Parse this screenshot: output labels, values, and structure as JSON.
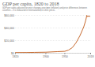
{
  "chart_data": {
    "type": "line",
    "title": "GDP per capita, 1820 to 2018",
    "subtitle": "GDP per capita adjusted for price changes over time (inflation) and price differences between countries – it is measured in international-$ in 2011 prices.",
    "x": [
      1820,
      1850,
      1870,
      1900,
      1913,
      1930,
      1950,
      1960,
      1970,
      1980,
      1990,
      2000,
      2005,
      2008,
      2010,
      2013,
      2018
    ],
    "series": [
      {
        "name": "GDP per capita",
        "color": "#c05917",
        "values": [
          1000,
          1100,
          1300,
          1600,
          2000,
          2500,
          3000,
          5000,
          9000,
          17000,
          28000,
          42000,
          52000,
          60000,
          58000,
          59000,
          58000
        ]
      }
    ],
    "xlim": [
      1820,
      2018
    ],
    "xticks": [
      1820,
      1900,
      1950,
      2018
    ],
    "ylim": [
      0,
      60000
    ],
    "yticks": [
      {
        "value": 0,
        "label": "$0"
      },
      {
        "value": 20000,
        "label": "$20,000"
      },
      {
        "value": 40000,
        "label": "$40,000"
      },
      {
        "value": 60000,
        "label": "$60,000"
      }
    ],
    "grid": true
  }
}
